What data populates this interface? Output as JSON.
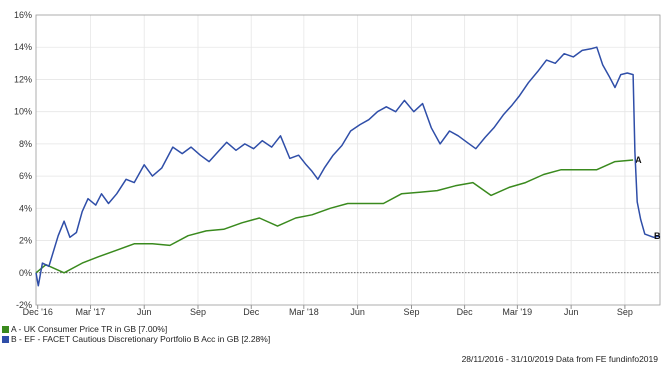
{
  "chart_data": {
    "type": "line",
    "title": "",
    "xlabel": "",
    "ylabel": "",
    "ylim": [
      -2,
      16
    ],
    "y_ticks": [
      "-2%",
      "0%",
      "2%",
      "4%",
      "6%",
      "8%",
      "10%",
      "12%",
      "14%",
      "16%"
    ],
    "x_ticks": [
      "Dec '16",
      "Mar '17",
      "Jun",
      "Sep",
      "Dec",
      "Mar '18",
      "Jun",
      "Sep",
      "Dec",
      "Mar '19",
      "Jun",
      "Sep"
    ],
    "x_range": [
      "2016-11-28",
      "2019-10-31"
    ],
    "grid": true,
    "series": [
      {
        "name": "A - UK Consumer Price TR in GB [7.00%]",
        "end_label": "A",
        "color": "#3a8a1e",
        "points": [
          [
            "2016-11-28",
            0.0
          ],
          [
            "2016-12-15",
            0.5
          ],
          [
            "2017-01-15",
            0.0
          ],
          [
            "2017-02-15",
            0.6
          ],
          [
            "2017-03-15",
            1.0
          ],
          [
            "2017-04-15",
            1.4
          ],
          [
            "2017-05-15",
            1.8
          ],
          [
            "2017-06-15",
            1.8
          ],
          [
            "2017-07-15",
            1.7
          ],
          [
            "2017-08-15",
            2.3
          ],
          [
            "2017-09-15",
            2.6
          ],
          [
            "2017-10-15",
            2.7
          ],
          [
            "2017-11-15",
            3.1
          ],
          [
            "2017-12-15",
            3.4
          ],
          [
            "2018-01-15",
            2.9
          ],
          [
            "2018-02-15",
            3.4
          ],
          [
            "2018-03-15",
            3.6
          ],
          [
            "2018-04-15",
            4.0
          ],
          [
            "2018-05-15",
            4.3
          ],
          [
            "2018-06-15",
            4.3
          ],
          [
            "2018-07-15",
            4.3
          ],
          [
            "2018-08-15",
            4.9
          ],
          [
            "2018-09-15",
            5.0
          ],
          [
            "2018-10-15",
            5.1
          ],
          [
            "2018-11-15",
            5.4
          ],
          [
            "2018-12-15",
            5.6
          ],
          [
            "2019-01-15",
            4.8
          ],
          [
            "2019-02-15",
            5.3
          ],
          [
            "2019-03-15",
            5.6
          ],
          [
            "2019-04-15",
            6.1
          ],
          [
            "2019-05-15",
            6.4
          ],
          [
            "2019-06-15",
            6.4
          ],
          [
            "2019-07-15",
            6.4
          ],
          [
            "2019-08-15",
            6.9
          ],
          [
            "2019-09-15",
            7.0
          ]
        ]
      },
      {
        "name": "B - EF - FACET Cautious Discretionary Portfolio B Acc in GB [2.28%]",
        "end_label": "B",
        "color": "#2f4ea8",
        "points": [
          [
            "2016-11-28",
            0.0
          ],
          [
            "2016-12-02",
            -0.8
          ],
          [
            "2016-12-09",
            0.6
          ],
          [
            "2016-12-20",
            0.4
          ],
          [
            "2017-01-05",
            2.3
          ],
          [
            "2017-01-15",
            3.2
          ],
          [
            "2017-01-25",
            2.2
          ],
          [
            "2017-02-05",
            2.5
          ],
          [
            "2017-02-15",
            3.8
          ],
          [
            "2017-02-25",
            4.6
          ],
          [
            "2017-03-10",
            4.2
          ],
          [
            "2017-03-20",
            4.9
          ],
          [
            "2017-04-01",
            4.3
          ],
          [
            "2017-04-15",
            4.9
          ],
          [
            "2017-05-01",
            5.8
          ],
          [
            "2017-05-15",
            5.6
          ],
          [
            "2017-06-01",
            6.7
          ],
          [
            "2017-06-15",
            6.0
          ],
          [
            "2017-07-01",
            6.5
          ],
          [
            "2017-07-20",
            7.8
          ],
          [
            "2017-08-05",
            7.4
          ],
          [
            "2017-08-20",
            7.8
          ],
          [
            "2017-09-05",
            7.3
          ],
          [
            "2017-09-20",
            6.9
          ],
          [
            "2017-10-05",
            7.5
          ],
          [
            "2017-10-20",
            8.1
          ],
          [
            "2017-11-05",
            7.6
          ],
          [
            "2017-11-20",
            8.0
          ],
          [
            "2017-12-05",
            7.7
          ],
          [
            "2017-12-20",
            8.2
          ],
          [
            "2018-01-05",
            7.8
          ],
          [
            "2018-01-20",
            8.5
          ],
          [
            "2018-02-05",
            7.1
          ],
          [
            "2018-02-20",
            7.3
          ],
          [
            "2018-03-05",
            6.7
          ],
          [
            "2018-03-15",
            6.3
          ],
          [
            "2018-03-25",
            5.8
          ],
          [
            "2018-04-05",
            6.5
          ],
          [
            "2018-04-20",
            7.3
          ],
          [
            "2018-05-05",
            7.9
          ],
          [
            "2018-05-20",
            8.8
          ],
          [
            "2018-06-05",
            9.2
          ],
          [
            "2018-06-20",
            9.5
          ],
          [
            "2018-07-05",
            10.0
          ],
          [
            "2018-07-20",
            10.3
          ],
          [
            "2018-08-05",
            10.0
          ],
          [
            "2018-08-20",
            10.7
          ],
          [
            "2018-09-05",
            10.0
          ],
          [
            "2018-09-20",
            10.5
          ],
          [
            "2018-10-05",
            9.0
          ],
          [
            "2018-10-20",
            8.0
          ],
          [
            "2018-11-05",
            8.8
          ],
          [
            "2018-11-20",
            8.5
          ],
          [
            "2018-12-05",
            8.1
          ],
          [
            "2018-12-20",
            7.7
          ],
          [
            "2019-01-05",
            8.4
          ],
          [
            "2019-01-20",
            9.0
          ],
          [
            "2019-02-05",
            9.8
          ],
          [
            "2019-02-20",
            10.4
          ],
          [
            "2019-03-05",
            11.0
          ],
          [
            "2019-03-20",
            11.8
          ],
          [
            "2019-04-05",
            12.5
          ],
          [
            "2019-04-20",
            13.2
          ],
          [
            "2019-05-05",
            13.0
          ],
          [
            "2019-05-20",
            13.6
          ],
          [
            "2019-06-05",
            13.4
          ],
          [
            "2019-06-20",
            13.8
          ],
          [
            "2019-07-05",
            13.9
          ],
          [
            "2019-07-15",
            14.0
          ],
          [
            "2019-07-25",
            12.9
          ],
          [
            "2019-08-05",
            12.2
          ],
          [
            "2019-08-15",
            11.5
          ],
          [
            "2019-08-25",
            12.3
          ],
          [
            "2019-09-05",
            12.4
          ],
          [
            "2019-09-15",
            12.3
          ],
          [
            "2019-09-18",
            7.5
          ],
          [
            "2019-09-22",
            4.4
          ],
          [
            "2019-09-28",
            3.3
          ],
          [
            "2019-10-05",
            2.4
          ],
          [
            "2019-10-20",
            2.2
          ],
          [
            "2019-10-31",
            2.28
          ]
        ]
      }
    ],
    "source_note": "28/11/2016 - 31/10/2019 Data from FE fundinfo2019"
  }
}
